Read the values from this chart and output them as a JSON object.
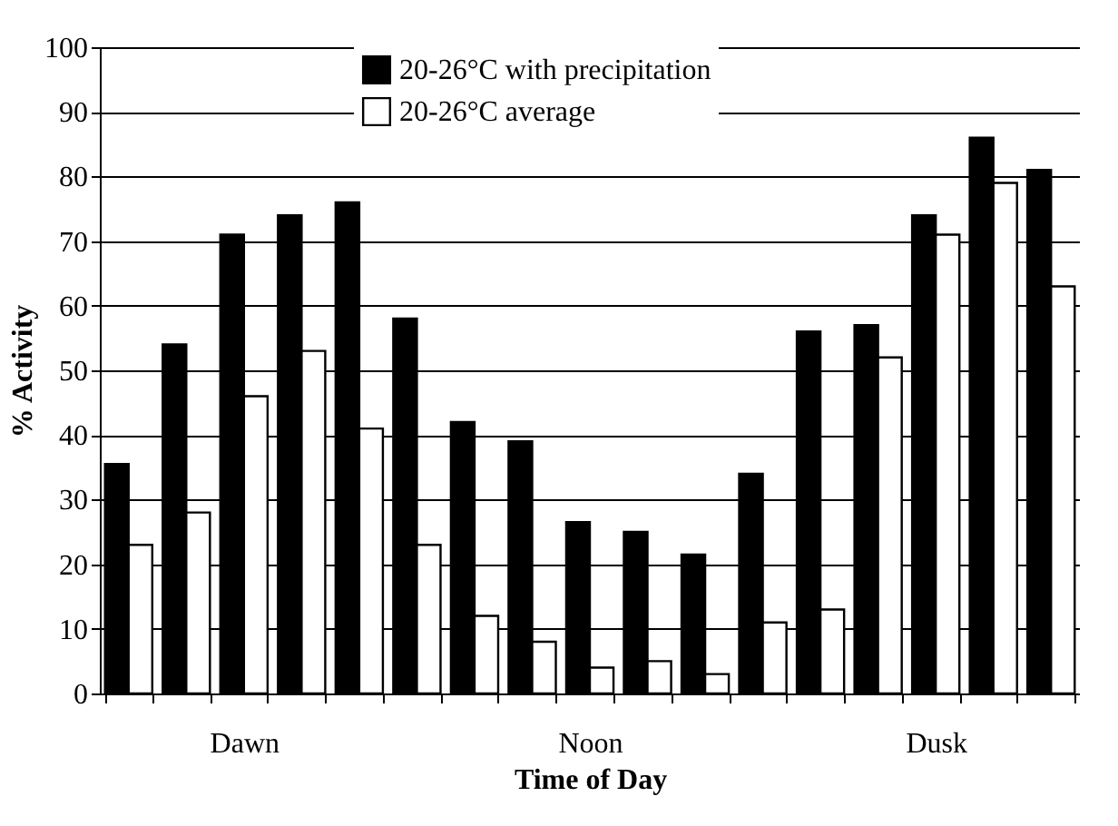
{
  "chart_data": {
    "type": "bar",
    "xlabel": "Time of Day",
    "ylabel": "% Activity",
    "categories": [
      null,
      null,
      "Dawn",
      null,
      null,
      null,
      null,
      null,
      "Noon",
      null,
      null,
      null,
      null,
      null,
      "Dusk",
      null,
      null
    ],
    "series": [
      {
        "name": "20-26°C with precipitation",
        "color": "#000000",
        "values": [
          35.5,
          54,
          71,
          74,
          76,
          58,
          42,
          39,
          26.5,
          25,
          21.5,
          34,
          56,
          57,
          74,
          86,
          81
        ]
      },
      {
        "name": "20-26°C average",
        "color": "#ffffff",
        "values": [
          23,
          28,
          46,
          53,
          41,
          23,
          12,
          8,
          4,
          5,
          3,
          11,
          13,
          52,
          71,
          79,
          63
        ]
      }
    ],
    "ylim": [
      0,
      100
    ],
    "yticks": [
      0,
      10,
      20,
      30,
      40,
      50,
      60,
      70,
      80,
      90,
      100
    ],
    "grid": "y",
    "legend": "top"
  }
}
